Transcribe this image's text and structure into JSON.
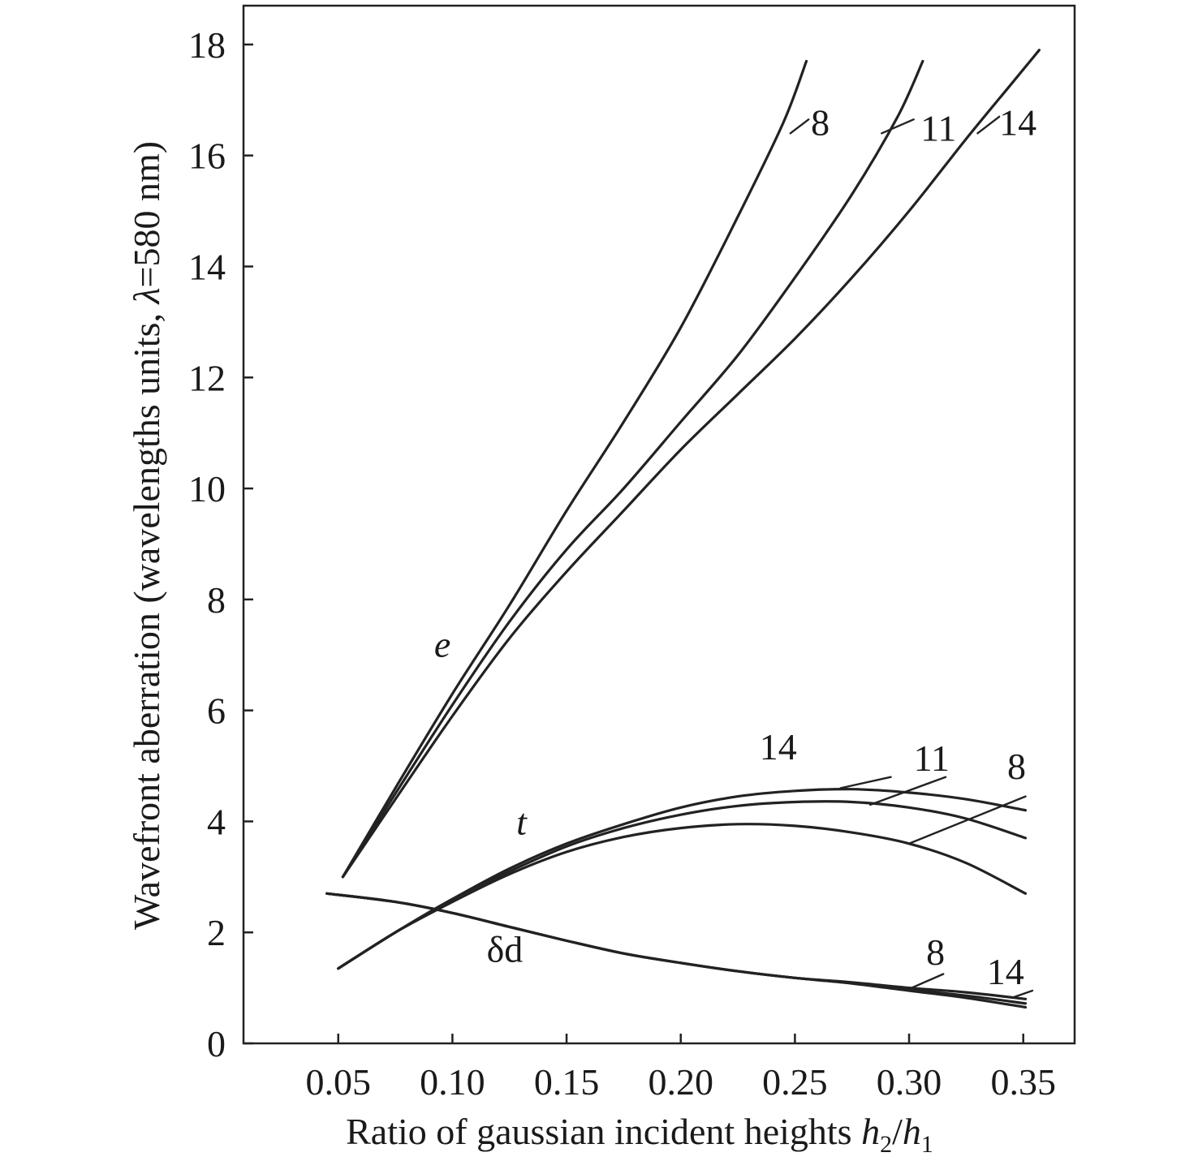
{
  "chart_data": {
    "type": "line",
    "title": "",
    "xlabel": "Ratio of gaussian incident heights h2/h1",
    "xlabel_parts": {
      "text": "Ratio of gaussian incident heights ",
      "var1": "h",
      "sub1": "2",
      "slash": "/",
      "var2": "h",
      "sub2": "1"
    },
    "ylabel": "Wavefront aberration (wavelengths units, λ=580 nm)",
    "ylabel_parts": {
      "before": "Wavefront aberration (wavelengths units, ",
      "lambda": "λ",
      "after": "=580 nm)"
    },
    "xlim": [
      0.0085,
      0.3725
    ],
    "ylim": [
      0,
      18.7
    ],
    "x_ticks": [
      0.05,
      0.1,
      0.15,
      0.2,
      0.25,
      0.3,
      0.35
    ],
    "x_tick_labels": [
      "0.05",
      "0.10",
      "0.15",
      "0.20",
      "0.25",
      "0.30",
      "0.35"
    ],
    "y_ticks": [
      0,
      2,
      4,
      6,
      8,
      10,
      12,
      14,
      16,
      18
    ],
    "y_tick_labels": [
      "0",
      "2",
      "4",
      "6",
      "8",
      "10",
      "12",
      "14",
      "16",
      "18"
    ],
    "grid": false,
    "group_labels": [
      {
        "text": "e",
        "italic": true,
        "x": 0.092,
        "y": 7.2
      },
      {
        "text": "t",
        "italic": true,
        "x": 0.128,
        "y": 4.0
      },
      {
        "text": "δd",
        "italic": false,
        "x": 0.115,
        "y": 1.7
      }
    ],
    "series": [
      {
        "group": "e",
        "name": "8",
        "label_x": 0.257,
        "label_y": 16.6,
        "leader_from": [
          0.248,
          16.4
        ],
        "leader_to": [
          0.256,
          16.65
        ],
        "x": [
          0.052,
          0.075,
          0.1,
          0.125,
          0.15,
          0.175,
          0.2,
          0.225,
          0.245,
          0.255
        ],
        "y": [
          3.0,
          4.6,
          6.3,
          7.9,
          9.6,
          11.2,
          12.9,
          14.9,
          16.6,
          17.7
        ]
      },
      {
        "group": "e",
        "name": "11",
        "label_x": 0.305,
        "label_y": 16.5,
        "leader_from": [
          0.288,
          16.4
        ],
        "leader_to": [
          0.302,
          16.65
        ],
        "x": [
          0.052,
          0.075,
          0.1,
          0.125,
          0.15,
          0.175,
          0.2,
          0.225,
          0.25,
          0.275,
          0.295,
          0.306
        ],
        "y": [
          3.0,
          4.5,
          6.1,
          7.6,
          8.9,
          10.0,
          11.2,
          12.4,
          13.8,
          15.3,
          16.7,
          17.7
        ]
      },
      {
        "group": "e",
        "name": "14",
        "label_x": 0.3395,
        "label_y": 16.6,
        "leader_from": [
          0.33,
          16.4
        ],
        "leader_to": [
          0.3395,
          16.7
        ],
        "x": [
          0.052,
          0.075,
          0.1,
          0.125,
          0.15,
          0.175,
          0.2,
          0.225,
          0.25,
          0.275,
          0.3,
          0.325,
          0.345,
          0.357
        ],
        "y": [
          3.0,
          4.4,
          5.9,
          7.3,
          8.5,
          9.6,
          10.7,
          11.7,
          12.7,
          13.8,
          15.0,
          16.3,
          17.3,
          17.9
        ]
      },
      {
        "group": "t",
        "name": "8",
        "label_x": 0.343,
        "label_y": 5.0,
        "leader_from": [
          0.3,
          3.6
        ],
        "leader_to": [
          0.351,
          4.45
        ],
        "x": [
          0.05,
          0.075,
          0.1,
          0.125,
          0.15,
          0.175,
          0.2,
          0.225,
          0.25,
          0.275,
          0.3,
          0.325,
          0.351
        ],
        "y": [
          1.35,
          2.0,
          2.55,
          3.05,
          3.45,
          3.72,
          3.88,
          3.95,
          3.92,
          3.8,
          3.6,
          3.25,
          2.7
        ]
      },
      {
        "group": "t",
        "name": "11",
        "label_x": 0.302,
        "label_y": 5.15,
        "leader_from": [
          0.283,
          4.3
        ],
        "leader_to": [
          0.316,
          4.8
        ],
        "x": [
          0.05,
          0.075,
          0.1,
          0.125,
          0.15,
          0.175,
          0.2,
          0.225,
          0.25,
          0.275,
          0.3,
          0.325,
          0.351
        ],
        "y": [
          1.35,
          2.0,
          2.6,
          3.1,
          3.55,
          3.88,
          4.12,
          4.28,
          4.35,
          4.35,
          4.25,
          4.05,
          3.7
        ]
      },
      {
        "group": "t",
        "name": "14",
        "label_x": 0.2345,
        "label_y": 5.35,
        "leader_from": [
          0.27,
          4.6
        ],
        "leader_to": [
          0.292,
          4.8
        ],
        "x": [
          0.05,
          0.075,
          0.1,
          0.125,
          0.15,
          0.175,
          0.2,
          0.225,
          0.25,
          0.275,
          0.3,
          0.325,
          0.351
        ],
        "y": [
          1.35,
          2.0,
          2.6,
          3.15,
          3.6,
          3.95,
          4.25,
          4.45,
          4.55,
          4.58,
          4.52,
          4.4,
          4.2
        ]
      },
      {
        "group": "δd",
        "name": "8",
        "label_x": 0.3075,
        "label_y": 1.65,
        "leader_from": [
          0.3,
          0.98
        ],
        "leader_to": [
          0.315,
          1.25
        ],
        "x": [
          0.045,
          0.075,
          0.1,
          0.125,
          0.15,
          0.175,
          0.2,
          0.225,
          0.25,
          0.275,
          0.3,
          0.325,
          0.351
        ],
        "y": [
          2.7,
          2.55,
          2.35,
          2.1,
          1.85,
          1.62,
          1.45,
          1.3,
          1.18,
          1.08,
          0.95,
          0.82,
          0.65
        ]
      },
      {
        "group": "δd",
        "name": "14",
        "label_x": 0.334,
        "label_y": 1.3,
        "leader_from": [
          0.345,
          0.82
        ],
        "leader_to": [
          0.354,
          0.95
        ],
        "x": [
          0.045,
          0.075,
          0.1,
          0.125,
          0.15,
          0.175,
          0.2,
          0.225,
          0.25,
          0.275,
          0.3,
          0.325,
          0.351
        ],
        "y": [
          2.7,
          2.55,
          2.35,
          2.1,
          1.85,
          1.62,
          1.45,
          1.3,
          1.18,
          1.1,
          1.0,
          0.92,
          0.8
        ]
      },
      {
        "group": "δd",
        "name": "",
        "label_x": null,
        "label_y": null,
        "leader_from": null,
        "leader_to": null,
        "x": [
          0.045,
          0.075,
          0.1,
          0.125,
          0.15,
          0.175,
          0.2,
          0.225,
          0.25,
          0.275,
          0.3,
          0.325,
          0.351
        ],
        "y": [
          2.7,
          2.55,
          2.35,
          2.1,
          1.85,
          1.62,
          1.45,
          1.3,
          1.18,
          1.09,
          0.97,
          0.86,
          0.72
        ]
      }
    ]
  }
}
